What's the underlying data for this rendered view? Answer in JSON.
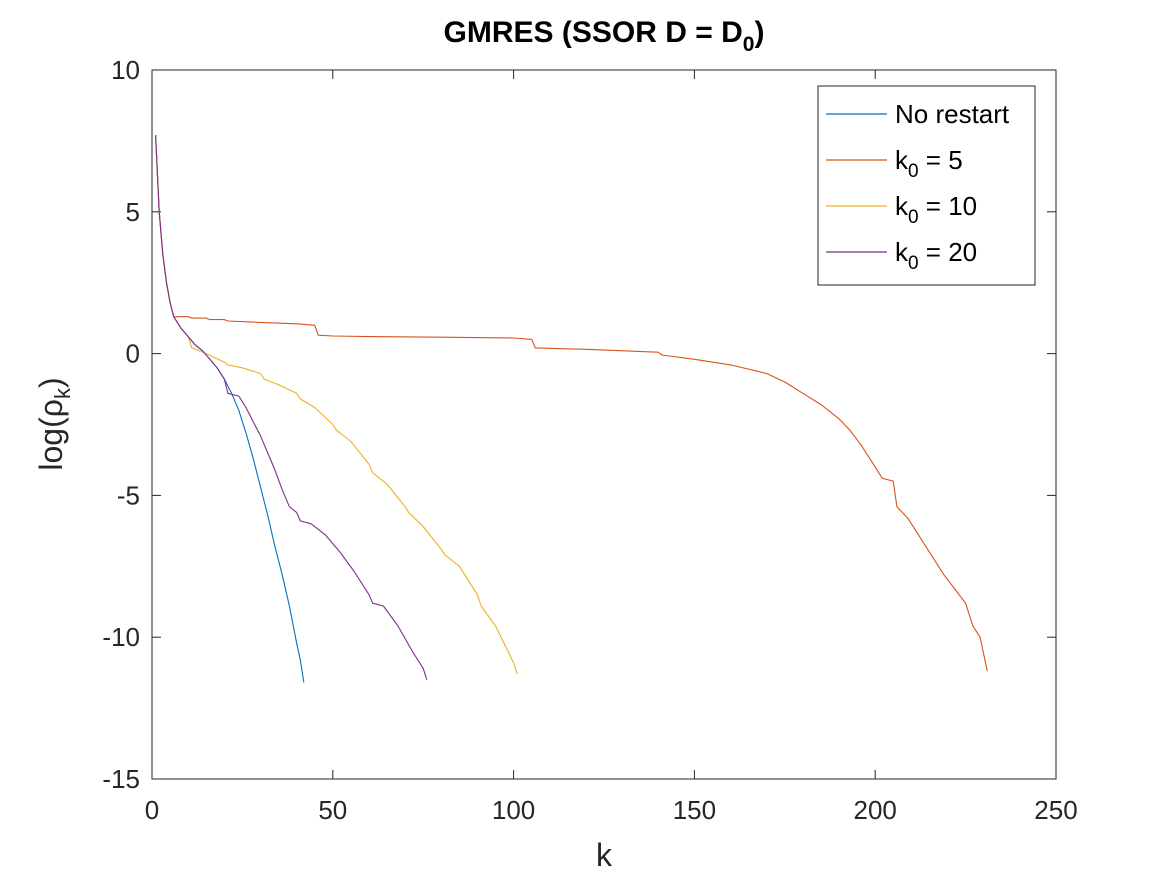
{
  "chart_data": {
    "type": "line",
    "title": "GMRES (SSOR D = D_0)",
    "title_parts": {
      "main": "GMRES (SSOR D = D",
      "sub": "0",
      "close": ")"
    },
    "xlabel": "k",
    "ylabel_parts": {
      "main": "log(ρ",
      "sub": "k",
      "close": ")"
    },
    "xlim": [
      0,
      250
    ],
    "ylim": [
      -15,
      10
    ],
    "xticks": [
      0,
      50,
      100,
      150,
      200,
      250
    ],
    "yticks": [
      -15,
      -10,
      -5,
      0,
      5,
      10
    ],
    "xtick_labels": [
      "0",
      "50",
      "100",
      "150",
      "200",
      "250"
    ],
    "ytick_labels": [
      "-15",
      "-10",
      "-5",
      "0",
      "5",
      "10"
    ],
    "grid": false,
    "legend_placement": "top-right",
    "series": [
      {
        "name": "No restart",
        "label_parts": {
          "main": "No restart",
          "sub": "",
          "tail": ""
        },
        "color": "#0072BD",
        "x": [
          1,
          2,
          3,
          4,
          5,
          6,
          8,
          10,
          12,
          14,
          16,
          18,
          20,
          22,
          24,
          26,
          28,
          30,
          32,
          34,
          36,
          38,
          40,
          41,
          42
        ],
        "y": [
          7.7,
          5.0,
          3.5,
          2.5,
          1.8,
          1.3,
          0.9,
          0.6,
          0.3,
          0.1,
          -0.2,
          -0.5,
          -0.9,
          -1.4,
          -2.0,
          -2.8,
          -3.7,
          -4.7,
          -5.7,
          -6.8,
          -7.8,
          -8.9,
          -10.2,
          -10.8,
          -11.6
        ]
      },
      {
        "name": "k_0 = 5",
        "label_parts": {
          "main": "k",
          "sub": "0",
          "tail": " = 5"
        },
        "color": "#D95319",
        "x": [
          1,
          2,
          3,
          4,
          5,
          6,
          10,
          11,
          15,
          16,
          20,
          21,
          30,
          40,
          45,
          46,
          50,
          60,
          80,
          100,
          105,
          106,
          120,
          140,
          141,
          150,
          160,
          170,
          175,
          180,
          185,
          190,
          193,
          196,
          199,
          202,
          205,
          206,
          209,
          212,
          213,
          216,
          219,
          222,
          225,
          227,
          229,
          231
        ],
        "y": [
          7.7,
          5.0,
          3.5,
          2.5,
          1.8,
          1.3,
          1.3,
          1.25,
          1.25,
          1.2,
          1.2,
          1.15,
          1.1,
          1.05,
          1.0,
          0.65,
          0.62,
          0.6,
          0.58,
          0.55,
          0.5,
          0.2,
          0.15,
          0.05,
          -0.05,
          -0.2,
          -0.4,
          -0.7,
          -1.0,
          -1.4,
          -1.8,
          -2.3,
          -2.7,
          -3.2,
          -3.8,
          -4.4,
          -4.5,
          -5.4,
          -5.8,
          -6.4,
          -6.6,
          -7.2,
          -7.8,
          -8.3,
          -8.8,
          -9.6,
          -10.0,
          -11.2
        ]
      },
      {
        "name": "k_0 = 10",
        "label_parts": {
          "main": "k",
          "sub": "0",
          "tail": " = 10"
        },
        "color": "#EDB120",
        "x": [
          1,
          2,
          3,
          4,
          5,
          6,
          8,
          10,
          11,
          15,
          20,
          21,
          25,
          30,
          31,
          35,
          40,
          41,
          45,
          50,
          51,
          55,
          60,
          61,
          65,
          70,
          71,
          75,
          80,
          81,
          85,
          90,
          91,
          95,
          100,
          101
        ],
        "y": [
          7.7,
          5.0,
          3.5,
          2.5,
          1.8,
          1.3,
          0.9,
          0.6,
          0.2,
          0.0,
          -0.3,
          -0.4,
          -0.5,
          -0.7,
          -0.9,
          -1.1,
          -1.4,
          -1.6,
          -1.9,
          -2.5,
          -2.7,
          -3.1,
          -3.9,
          -4.2,
          -4.6,
          -5.4,
          -5.6,
          -6.1,
          -6.9,
          -7.1,
          -7.5,
          -8.5,
          -8.9,
          -9.6,
          -10.9,
          -11.3
        ]
      },
      {
        "name": "k_0 = 20",
        "label_parts": {
          "main": "k",
          "sub": "0",
          "tail": " = 20"
        },
        "color": "#7E2F8E",
        "x": [
          1,
          2,
          3,
          4,
          5,
          6,
          8,
          10,
          12,
          14,
          16,
          18,
          20,
          21,
          24,
          26,
          28,
          30,
          32,
          34,
          36,
          38,
          40,
          41,
          44,
          48,
          52,
          56,
          60,
          61,
          64,
          68,
          72,
          75,
          76
        ],
        "y": [
          7.7,
          5.0,
          3.5,
          2.5,
          1.8,
          1.3,
          0.9,
          0.6,
          0.3,
          0.1,
          -0.2,
          -0.5,
          -0.9,
          -1.4,
          -1.5,
          -1.9,
          -2.4,
          -2.9,
          -3.5,
          -4.1,
          -4.8,
          -5.4,
          -5.6,
          -5.9,
          -6.0,
          -6.4,
          -7.0,
          -7.7,
          -8.5,
          -8.8,
          -8.9,
          -9.6,
          -10.5,
          -11.1,
          -11.5
        ]
      }
    ]
  }
}
